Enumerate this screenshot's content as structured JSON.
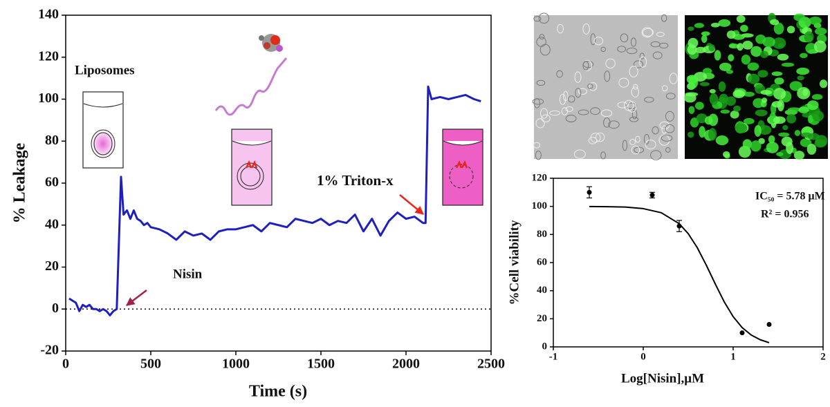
{
  "chart_data": [
    {
      "type": "line",
      "xlabel": "Time (s)",
      "ylabel": "% Leakage",
      "annotations": [
        "Liposomes",
        "Nisin",
        "1% Triton-x"
      ],
      "xlim": [
        0,
        2500
      ],
      "xticks": [
        0,
        500,
        1000,
        1500,
        2000,
        2500
      ],
      "ylim": [
        -20,
        140
      ],
      "yticks": [
        -20,
        0,
        20,
        40,
        60,
        80,
        100,
        120,
        140
      ],
      "reference_line": 0,
      "x": [
        20,
        40,
        60,
        80,
        100,
        120,
        140,
        160,
        180,
        200,
        220,
        240,
        260,
        280,
        300,
        325,
        340,
        360,
        380,
        400,
        420,
        440,
        460,
        480,
        500,
        550,
        600,
        650,
        700,
        750,
        800,
        850,
        900,
        950,
        1000,
        1050,
        1100,
        1150,
        1200,
        1250,
        1300,
        1350,
        1400,
        1450,
        1500,
        1550,
        1600,
        1650,
        1700,
        1750,
        1800,
        1850,
        1900,
        1950,
        2000,
        2050,
        2100,
        2115,
        2130,
        2150,
        2200,
        2250,
        2300,
        2350,
        2400,
        2440
      ],
      "series": [
        {
          "color": "#1f1fbf",
          "values": [
            5,
            4,
            3,
            -1,
            2,
            1,
            2,
            0,
            0,
            -1,
            0,
            -1,
            -3,
            -1,
            0,
            63,
            45,
            47,
            43,
            47,
            43,
            42,
            40,
            41,
            39,
            38,
            36,
            33,
            37,
            35,
            36,
            33,
            37,
            38,
            38,
            39,
            40,
            37,
            41,
            40,
            39,
            43,
            42,
            41,
            43,
            40,
            42,
            41,
            45,
            37,
            43,
            35,
            42,
            46,
            43,
            44,
            41,
            41,
            106,
            100,
            101,
            100,
            101,
            102,
            100,
            99
          ]
        }
      ]
    },
    {
      "type": "scatter",
      "xlabel": "Log[Nisin],μM",
      "ylabel": "%Cell viability",
      "annotations": [
        "IC₅₀ = 5.78 μM",
        "R² = 0.956"
      ],
      "xlim": [
        -1,
        2
      ],
      "xticks": [
        -1,
        0,
        1,
        2
      ],
      "ylim": [
        0,
        120
      ],
      "yticks": [
        0,
        20,
        40,
        60,
        80,
        100,
        120
      ],
      "series": [
        {
          "color": "#000000",
          "x": [
            -0.6,
            0.1,
            0.4,
            1.1,
            1.4
          ],
          "values": [
            110,
            108,
            86,
            10,
            16
          ],
          "errors": [
            4,
            2,
            4,
            null,
            null
          ]
        }
      ],
      "fit": {
        "color": "#000000",
        "x": [
          -0.6,
          -0.4,
          -0.2,
          0,
          0.2,
          0.4,
          0.5,
          0.6,
          0.7,
          0.8,
          0.9,
          1.0,
          1.1,
          1.2,
          1.3,
          1.4
        ],
        "values": [
          99.9,
          99.8,
          99.5,
          98.4,
          95.5,
          87.7,
          80.6,
          70.7,
          58.3,
          44.9,
          32.1,
          21.5,
          13.7,
          8.5,
          5.1,
          3.0
        ]
      }
    }
  ]
}
